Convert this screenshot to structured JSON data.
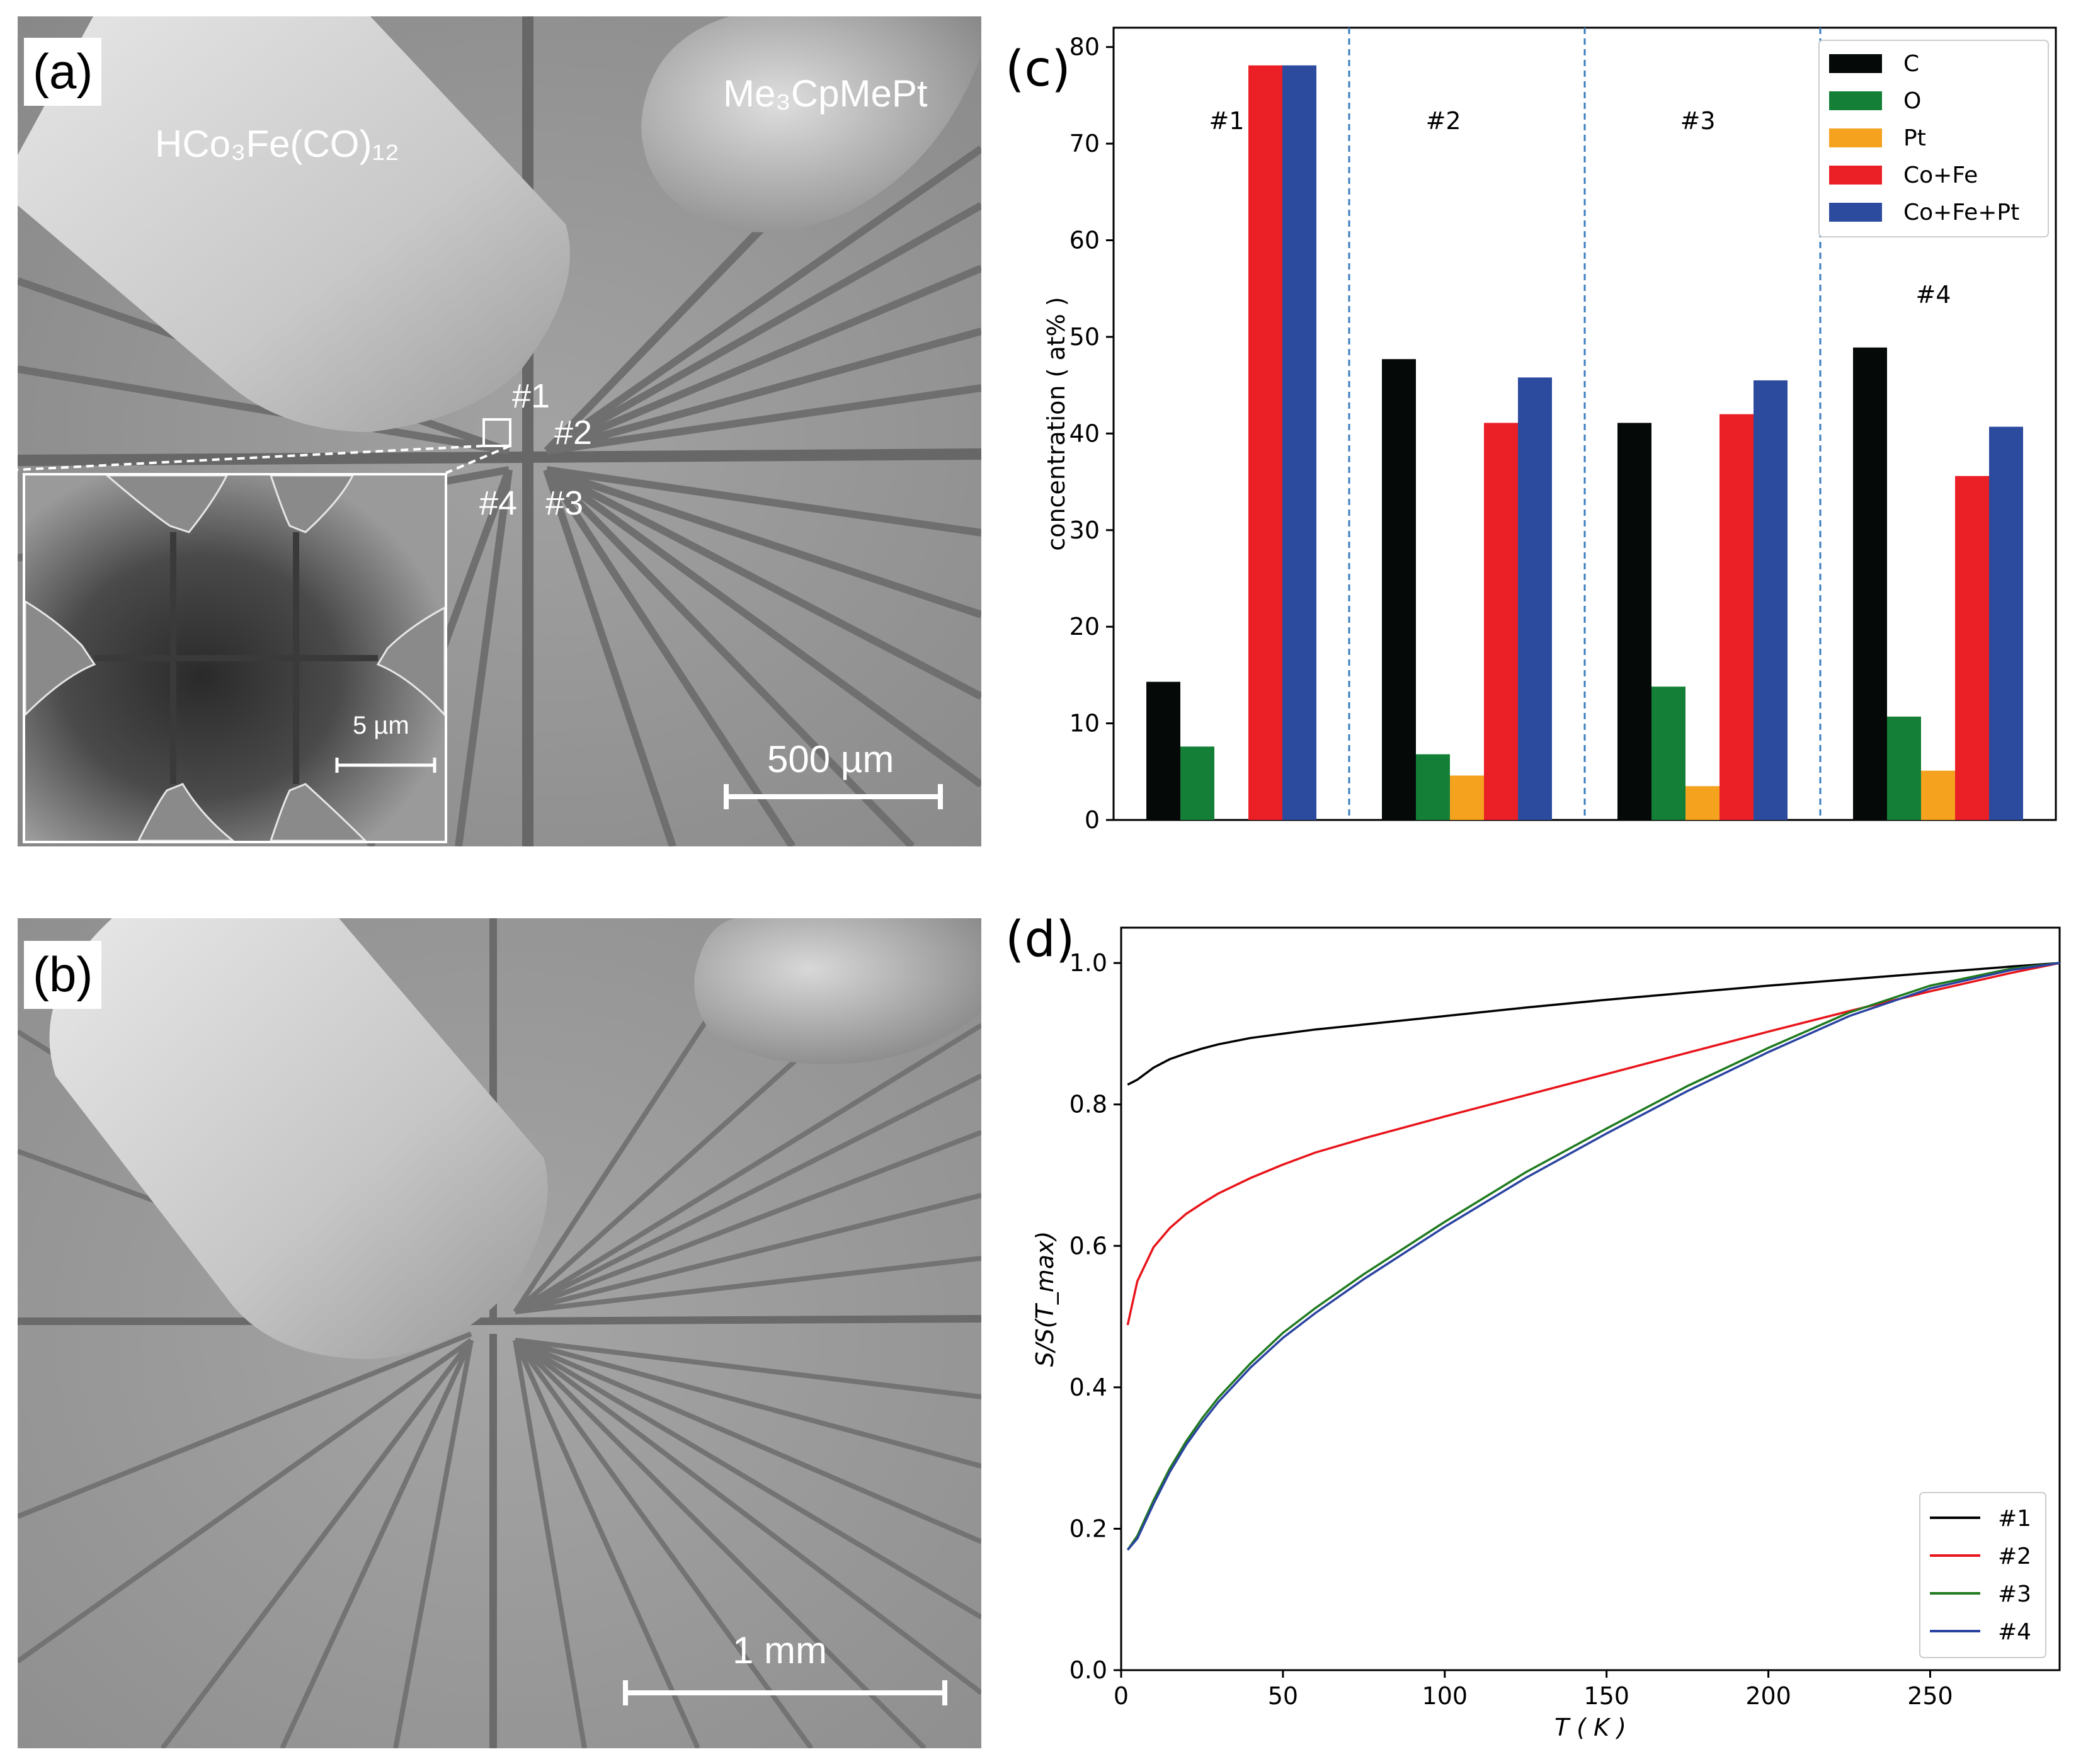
{
  "panels": {
    "a": {
      "tag": "(a)",
      "precursor_left": "HCo₃Fe(CO)₁₂",
      "precursor_right": "Me₃CpMePt",
      "scale_bar": "500 µm",
      "inset_scale_bar": "5 µm",
      "structures": [
        "#1",
        "#2",
        "#3",
        "#4"
      ]
    },
    "b": {
      "tag": "(b)",
      "scale_bar": "1 mm"
    }
  },
  "chart_data": [
    {
      "id": "c",
      "tag": "(c)",
      "type": "bar",
      "ylabel": "concentration ( at% )",
      "ylim": [
        0,
        82
      ],
      "yticks": [
        0,
        10,
        20,
        30,
        40,
        50,
        60,
        70,
        80
      ],
      "groups": [
        "#1",
        "#2",
        "#3",
        "#4"
      ],
      "series": [
        {
          "name": "C",
          "color": "#050a09",
          "values": [
            14.3,
            47.7,
            41.1,
            48.9
          ]
        },
        {
          "name": "O",
          "color": "#148037",
          "values": [
            7.6,
            6.8,
            13.8,
            10.7
          ]
        },
        {
          "name": "Pt",
          "color": "#f5a21f",
          "values": [
            0,
            4.6,
            3.5,
            5.1
          ]
        },
        {
          "name": "Co+Fe",
          "color": "#eb2027",
          "values": [
            78.1,
            41.1,
            42.0,
            35.6
          ]
        },
        {
          "name": "Co+Fe+Pt",
          "color": "#2c4b9f",
          "values": [
            78.1,
            45.8,
            45.5,
            40.7
          ]
        }
      ],
      "legend_position": "top-right",
      "separator_color": "#3a7ebf"
    },
    {
      "id": "d",
      "tag": "(d)",
      "type": "line",
      "xlabel": "T ( K )",
      "ylabel": "S/S(T_max)",
      "xlim": [
        0,
        290
      ],
      "ylim": [
        0.0,
        1.05
      ],
      "xticks": [
        0,
        50,
        100,
        150,
        200,
        250
      ],
      "yticks": [
        0.0,
        0.2,
        0.4,
        0.6,
        0.8,
        1.0
      ],
      "x": [
        2,
        5,
        10,
        15,
        20,
        25,
        30,
        40,
        50,
        60,
        75,
        100,
        125,
        150,
        175,
        200,
        225,
        250,
        275,
        290
      ],
      "series": [
        {
          "name": "#1",
          "color": "#000000",
          "values": [
            0.828,
            0.835,
            0.852,
            0.864,
            0.872,
            0.879,
            0.885,
            0.894,
            0.9,
            0.906,
            0.913,
            0.925,
            0.937,
            0.948,
            0.958,
            0.968,
            0.977,
            0.986,
            0.995,
            1.0
          ]
        },
        {
          "name": "#2",
          "color": "#e8141a",
          "values": [
            0.488,
            0.55,
            0.598,
            0.625,
            0.645,
            0.66,
            0.674,
            0.696,
            0.715,
            0.732,
            0.752,
            0.783,
            0.813,
            0.843,
            0.873,
            0.903,
            0.932,
            0.96,
            0.986,
            1.0
          ]
        },
        {
          "name": "#3",
          "color": "#1f7a1f",
          "values": [
            0.17,
            0.19,
            0.24,
            0.285,
            0.323,
            0.356,
            0.385,
            0.434,
            0.477,
            0.512,
            0.56,
            0.634,
            0.704,
            0.766,
            0.826,
            0.88,
            0.93,
            0.968,
            0.992,
            1.0
          ]
        },
        {
          "name": "#4",
          "color": "#2a43a0",
          "values": [
            0.17,
            0.186,
            0.235,
            0.28,
            0.318,
            0.35,
            0.379,
            0.428,
            0.47,
            0.505,
            0.553,
            0.627,
            0.696,
            0.759,
            0.819,
            0.874,
            0.925,
            0.964,
            0.99,
            1.0
          ]
        }
      ],
      "legend_position": "bottom-right"
    }
  ]
}
